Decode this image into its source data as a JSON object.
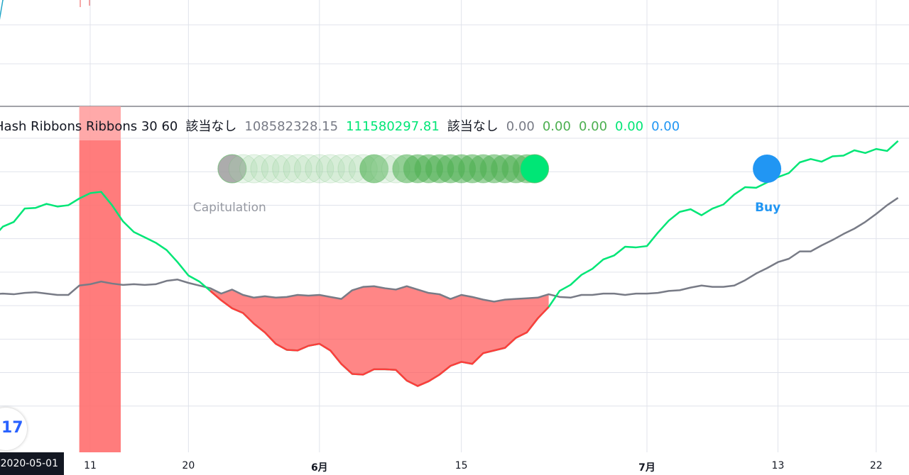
{
  "colors": {
    "fast_ma": "#00e676",
    "slow_ma": "#787b86",
    "capitulation_fill": "#ff5252",
    "band": "#ff6e6e",
    "buy": "#2196f3",
    "grid": "#e0e3eb",
    "top_line": "#22a6c7"
  },
  "legend": {
    "name": "Hash Ribbons Ribbons 30 60",
    "na1": "該当なし",
    "slow_value": "108582328.15",
    "fast_value": "111580297.81",
    "na2": "該当なし",
    "v1": "0.00",
    "v2": "0.00",
    "v3": "0.00",
    "v4": "0.00",
    "v5": "0.00"
  },
  "labels": {
    "capitulation": "Capitulation",
    "buy": "Buy"
  },
  "crosshair_date": "2020-05-01",
  "logo": "tradingview-logo-icon",
  "chart_data": {
    "type": "line",
    "x_ticks": [
      {
        "label": "11",
        "day": 11,
        "bold": false
      },
      {
        "label": "20",
        "day": 20,
        "bold": false
      },
      {
        "label": "6月",
        "day": 32,
        "bold": true
      },
      {
        "label": "15",
        "day": 45,
        "bold": false
      },
      {
        "label": "7月",
        "day": 62,
        "bold": true
      },
      {
        "label": "13",
        "day": 74,
        "bold": false
      },
      {
        "label": "22",
        "day": 83,
        "bold": false
      }
    ],
    "x_range": [
      2,
      85
    ],
    "y_range": [
      80,
      125
    ],
    "series": [
      {
        "key": "slow",
        "points": [
          [
            2,
            101.7
          ],
          [
            3,
            101.8
          ],
          [
            4,
            101.7
          ],
          [
            5,
            101.9
          ],
          [
            6,
            102.0
          ],
          [
            7,
            101.8
          ],
          [
            8,
            101.6
          ],
          [
            9,
            101.6
          ],
          [
            10,
            103.0
          ],
          [
            11,
            103.2
          ],
          [
            12,
            103.6
          ],
          [
            13,
            103.3
          ],
          [
            14,
            103.1
          ],
          [
            15,
            103.2
          ],
          [
            16,
            103.1
          ],
          [
            17,
            103.2
          ],
          [
            18,
            103.7
          ],
          [
            19,
            103.9
          ],
          [
            20,
            103.4
          ],
          [
            21,
            103.0
          ],
          [
            22,
            102.6
          ],
          [
            23,
            101.8
          ],
          [
            24,
            102.4
          ],
          [
            25,
            101.6
          ],
          [
            26,
            101.2
          ],
          [
            27,
            101.4
          ],
          [
            28,
            101.2
          ],
          [
            29,
            101.3
          ],
          [
            30,
            101.6
          ],
          [
            31,
            101.5
          ],
          [
            32,
            101.6
          ],
          [
            33,
            101.3
          ],
          [
            34,
            101.0
          ],
          [
            35,
            102.3
          ],
          [
            36,
            102.8
          ],
          [
            37,
            102.9
          ],
          [
            38,
            102.6
          ],
          [
            39,
            102.4
          ],
          [
            40,
            102.9
          ],
          [
            41,
            102.4
          ],
          [
            42,
            101.9
          ],
          [
            43,
            101.7
          ],
          [
            44,
            101.0
          ],
          [
            45,
            101.6
          ],
          [
            46,
            101.3
          ],
          [
            47,
            100.9
          ],
          [
            48,
            100.6
          ],
          [
            49,
            100.9
          ],
          [
            50,
            101.0
          ],
          [
            51,
            101.1
          ],
          [
            52,
            101.2
          ],
          [
            53,
            101.7
          ],
          [
            54,
            101.3
          ],
          [
            55,
            101.2
          ],
          [
            56,
            101.6
          ],
          [
            57,
            101.6
          ],
          [
            58,
            101.8
          ],
          [
            59,
            101.8
          ],
          [
            60,
            101.6
          ],
          [
            61,
            101.8
          ],
          [
            62,
            101.8
          ],
          [
            63,
            101.9
          ],
          [
            64,
            102.2
          ],
          [
            65,
            102.3
          ],
          [
            66,
            102.7
          ],
          [
            67,
            103.0
          ],
          [
            68,
            102.8
          ],
          [
            69,
            102.8
          ],
          [
            70,
            103.0
          ],
          [
            71,
            103.8
          ],
          [
            72,
            104.8
          ],
          [
            73,
            105.6
          ],
          [
            74,
            106.5
          ],
          [
            75,
            107.0
          ],
          [
            76,
            108.1
          ],
          [
            77,
            108.1
          ],
          [
            78,
            109.0
          ],
          [
            79,
            109.8
          ],
          [
            80,
            110.7
          ],
          [
            81,
            111.5
          ],
          [
            82,
            112.5
          ],
          [
            83,
            113.7
          ],
          [
            84,
            115.0
          ],
          [
            85,
            116.1
          ]
        ]
      },
      {
        "key": "fast",
        "points": [
          [
            2,
            110.0
          ],
          [
            3,
            111.8
          ],
          [
            4,
            112.5
          ],
          [
            5,
            114.5
          ],
          [
            6,
            114.6
          ],
          [
            7,
            115.2
          ],
          [
            8,
            114.8
          ],
          [
            9,
            115.0
          ],
          [
            10,
            116.0
          ],
          [
            11,
            116.8
          ],
          [
            12,
            117.0
          ],
          [
            13,
            115.0
          ],
          [
            14,
            112.6
          ],
          [
            15,
            111.0
          ],
          [
            16,
            110.2
          ],
          [
            17,
            109.4
          ],
          [
            18,
            108.3
          ],
          [
            19,
            106.5
          ],
          [
            20,
            104.5
          ],
          [
            21,
            103.6
          ],
          [
            22,
            102.2
          ],
          [
            23,
            100.8
          ],
          [
            24,
            99.6
          ],
          [
            25,
            98.9
          ],
          [
            26,
            97.3
          ],
          [
            27,
            96.0
          ],
          [
            28,
            94.3
          ],
          [
            29,
            93.4
          ],
          [
            30,
            93.3
          ],
          [
            31,
            94.0
          ],
          [
            32,
            94.3
          ],
          [
            33,
            93.3
          ],
          [
            34,
            91.3
          ],
          [
            35,
            89.8
          ],
          [
            36,
            89.7
          ],
          [
            37,
            90.5
          ],
          [
            38,
            90.5
          ],
          [
            39,
            90.4
          ],
          [
            40,
            88.8
          ],
          [
            41,
            88.0
          ],
          [
            42,
            88.7
          ],
          [
            43,
            89.7
          ],
          [
            44,
            91.0
          ],
          [
            45,
            91.6
          ],
          [
            46,
            91.3
          ],
          [
            47,
            92.9
          ],
          [
            48,
            93.3
          ],
          [
            49,
            93.7
          ],
          [
            50,
            95.2
          ],
          [
            51,
            96.0
          ],
          [
            52,
            98.1
          ],
          [
            53,
            99.8
          ],
          [
            54,
            102.2
          ],
          [
            55,
            103.1
          ],
          [
            56,
            104.6
          ],
          [
            57,
            105.5
          ],
          [
            58,
            106.9
          ],
          [
            59,
            107.5
          ],
          [
            60,
            108.8
          ],
          [
            61,
            108.7
          ],
          [
            62,
            108.9
          ],
          [
            63,
            110.9
          ],
          [
            64,
            112.7
          ],
          [
            65,
            114.0
          ],
          [
            66,
            114.4
          ],
          [
            67,
            113.5
          ],
          [
            68,
            114.5
          ],
          [
            69,
            115.1
          ],
          [
            70,
            116.6
          ],
          [
            71,
            117.7
          ],
          [
            72,
            117.6
          ],
          [
            73,
            118.4
          ],
          [
            74,
            119.2
          ],
          [
            75,
            119.8
          ],
          [
            76,
            121.4
          ],
          [
            77,
            121.9
          ],
          [
            78,
            121.5
          ],
          [
            79,
            122.3
          ],
          [
            80,
            122.4
          ],
          [
            81,
            123.2
          ],
          [
            82,
            122.8
          ],
          [
            83,
            123.4
          ],
          [
            84,
            123.1
          ],
          [
            85,
            124.6
          ]
        ]
      }
    ],
    "capitulation_band": {
      "from_day": 10,
      "to_day": 13.8
    },
    "markers": [
      {
        "day": 24,
        "kind": "capitulation-start",
        "color": "#9e9e9e",
        "opacity": 0.85
      },
      {
        "day": 25,
        "color": "#a5d6a7",
        "opacity": 0.25
      },
      {
        "day": 26,
        "color": "#a5d6a7",
        "opacity": 0.25
      },
      {
        "day": 27,
        "color": "#a5d6a7",
        "opacity": 0.25
      },
      {
        "day": 28,
        "color": "#a5d6a7",
        "opacity": 0.25
      },
      {
        "day": 29,
        "color": "#a5d6a7",
        "opacity": 0.25
      },
      {
        "day": 30,
        "color": "#a5d6a7",
        "opacity": 0.25
      },
      {
        "day": 31,
        "color": "#a5d6a7",
        "opacity": 0.25
      },
      {
        "day": 32,
        "color": "#a5d6a7",
        "opacity": 0.25
      },
      {
        "day": 33,
        "color": "#a5d6a7",
        "opacity": 0.25
      },
      {
        "day": 34,
        "color": "#a5d6a7",
        "opacity": 0.25
      },
      {
        "day": 35,
        "color": "#a5d6a7",
        "opacity": 0.25
      },
      {
        "day": 36,
        "color": "#a5d6a7",
        "opacity": 0.25
      },
      {
        "day": 37,
        "color": "#4caf50",
        "opacity": 0.6
      },
      {
        "day": 38,
        "color": "#a5d6a7",
        "opacity": 0.25
      },
      {
        "day": 39,
        "color": "#a5d6a7",
        "opacity": 0.25
      },
      {
        "day": 40,
        "color": "#4caf50",
        "opacity": 0.55
      },
      {
        "day": 41,
        "color": "#4caf50",
        "opacity": 0.55
      },
      {
        "day": 42,
        "color": "#4caf50",
        "opacity": 0.55
      },
      {
        "day": 43,
        "color": "#4caf50",
        "opacity": 0.55
      },
      {
        "day": 44,
        "color": "#4caf50",
        "opacity": 0.55
      },
      {
        "day": 45,
        "color": "#4caf50",
        "opacity": 0.55
      },
      {
        "day": 46,
        "color": "#4caf50",
        "opacity": 0.55
      },
      {
        "day": 47,
        "color": "#4caf50",
        "opacity": 0.55
      },
      {
        "day": 48,
        "color": "#4caf50",
        "opacity": 0.55
      },
      {
        "day": 49,
        "color": "#4caf50",
        "opacity": 0.55
      },
      {
        "day": 50,
        "color": "#4caf50",
        "opacity": 0.55
      },
      {
        "day": 51,
        "color": "#4caf50",
        "opacity": 0.55
      },
      {
        "day": 51.7,
        "color": "#00e676",
        "opacity": 1
      },
      {
        "day": 73,
        "kind": "buy",
        "color": "#2196f3",
        "opacity": 1
      }
    ],
    "top_pane_line": [
      [
        2,
        142
      ],
      [
        3,
        145
      ],
      [
        4,
        148
      ],
      [
        5,
        150
      ],
      [
        6,
        154
      ],
      [
        7,
        160
      ]
    ]
  }
}
